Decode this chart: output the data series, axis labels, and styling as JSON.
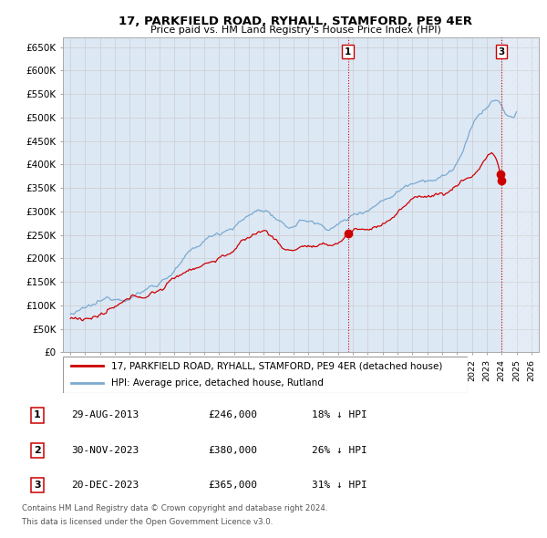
{
  "title": "17, PARKFIELD ROAD, RYHALL, STAMFORD, PE9 4ER",
  "subtitle": "Price paid vs. HM Land Registry's House Price Index (HPI)",
  "ylabel_ticks": [
    "£0",
    "£50K",
    "£100K",
    "£150K",
    "£200K",
    "£250K",
    "£300K",
    "£350K",
    "£400K",
    "£450K",
    "£500K",
    "£550K",
    "£600K",
    "£650K"
  ],
  "ytick_values": [
    0,
    50000,
    100000,
    150000,
    200000,
    250000,
    300000,
    350000,
    400000,
    450000,
    500000,
    550000,
    600000,
    650000
  ],
  "xmin": 1994.5,
  "xmax": 2026.5,
  "ymin": 0,
  "ymax": 670000,
  "grid_color": "#cccccc",
  "background_color": "#ffffff",
  "plot_bg_color": "#dde8f5",
  "hpi_color": "#7aaad0",
  "price_color": "#cc0000",
  "vline_color": "#cc0000",
  "transactions": [
    {
      "num": 1,
      "date_x": 2013.66,
      "price": 246000
    },
    {
      "num": 2,
      "date_x": 2023.92,
      "price": 380000
    },
    {
      "num": 3,
      "date_x": 2023.97,
      "price": 365000
    }
  ],
  "legend_line1": "17, PARKFIELD ROAD, RYHALL, STAMFORD, PE9 4ER (detached house)",
  "legend_line2": "HPI: Average price, detached house, Rutland",
  "footnote1": "Contains HM Land Registry data © Crown copyright and database right 2024.",
  "footnote2": "This data is licensed under the Open Government Licence v3.0.",
  "table_rows": [
    {
      "num": 1,
      "date": "29-AUG-2013",
      "price": "£246,000",
      "pct": "18% ↓ HPI"
    },
    {
      "num": 2,
      "date": "30-NOV-2023",
      "price": "£380,000",
      "pct": "26% ↓ HPI"
    },
    {
      "num": 3,
      "date": "20-DEC-2023",
      "price": "£365,000",
      "pct": "31% ↓ HPI"
    }
  ]
}
